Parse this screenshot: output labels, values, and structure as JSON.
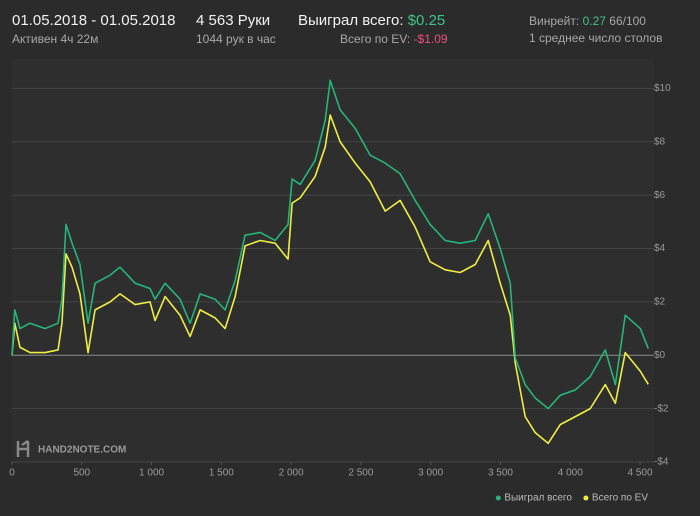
{
  "header": {
    "date_range": "01.05.2018 - 01.05.2018",
    "active": "Активен 4ч 22м",
    "hands": "4 563 Руки",
    "hands_per_hour": "1044 рук в час",
    "won_label": "Выиграл всего:",
    "won_value": "$0.25",
    "ev_label": "Всего по EV:",
    "ev_value": "-$1.09",
    "winrate_label": "Винрейт:",
    "winrate_value": "0.27",
    "winrate_sample": "66/100",
    "tables": "1 среднее число столов"
  },
  "watermark": "HAND2NOTE.COM",
  "chart_data": {
    "type": "line",
    "x": [
      0,
      20,
      57,
      129,
      237,
      330,
      358,
      387,
      430,
      487,
      545,
      595,
      703,
      774,
      882,
      989,
      1025,
      1097,
      1204,
      1276,
      1348,
      1455,
      1527,
      1599,
      1670,
      1778,
      1885,
      1978,
      2007,
      2065,
      2172,
      2244,
      2280,
      2351,
      2459,
      2566,
      2674,
      2781,
      2889,
      2996,
      3104,
      3211,
      3319,
      3412,
      3498,
      3570,
      3606,
      3677,
      3749,
      3842,
      3928,
      4036,
      4143,
      4251,
      4323,
      4394,
      4502,
      4559
    ],
    "series": [
      {
        "name": "Выиграл всего",
        "color": "#25b57a",
        "values": [
          0,
          1.7,
          1.0,
          1.2,
          1.0,
          1.2,
          2.1,
          4.9,
          4.2,
          3.4,
          1.2,
          2.7,
          3.0,
          3.3,
          2.7,
          2.5,
          2.1,
          2.7,
          2.1,
          1.2,
          2.3,
          2.1,
          1.7,
          2.8,
          4.5,
          4.6,
          4.3,
          4.9,
          6.6,
          6.4,
          7.3,
          8.8,
          10.3,
          9.2,
          8.5,
          7.5,
          7.2,
          6.8,
          5.8,
          4.9,
          4.3,
          4.2,
          4.3,
          5.3,
          4.0,
          2.7,
          -0.1,
          -1.1,
          -1.6,
          -2.0,
          -1.5,
          -1.3,
          -0.8,
          0.2,
          -1.1,
          1.5,
          1.0,
          0.25
        ]
      },
      {
        "name": "Всего по EV",
        "color": "#eeee44",
        "values": [
          0,
          1.2,
          0.3,
          0.1,
          0.1,
          0.2,
          1.2,
          3.8,
          3.3,
          2.3,
          0.1,
          1.7,
          2.0,
          2.3,
          1.9,
          2.0,
          1.3,
          2.2,
          1.5,
          0.7,
          1.7,
          1.4,
          1.0,
          2.2,
          4.1,
          4.3,
          4.2,
          3.6,
          5.7,
          5.9,
          6.7,
          7.8,
          9.0,
          8.0,
          7.2,
          6.5,
          5.4,
          5.8,
          4.8,
          3.5,
          3.2,
          3.1,
          3.4,
          4.3,
          2.7,
          1.5,
          -0.3,
          -2.3,
          -2.9,
          -3.3,
          -2.6,
          -2.3,
          -2.0,
          -1.1,
          -1.8,
          0.1,
          -0.6,
          -1.09
        ]
      }
    ],
    "xlim": [
      0,
      4600
    ],
    "ylim": [
      -4,
      11.1
    ],
    "xticks": [
      0,
      500,
      {
        "value": 1000,
        "label": "1 000"
      },
      {
        "value": 1500,
        "label": "1 500"
      },
      {
        "value": 2000,
        "label": "2 000"
      },
      {
        "value": 2500,
        "label": "2 500"
      },
      {
        "value": 3000,
        "label": "3 000"
      },
      {
        "value": 3500,
        "label": "3 500"
      },
      {
        "value": 4000,
        "label": "4 000"
      },
      {
        "value": 4500,
        "label": "4 500"
      }
    ],
    "yticks": [
      {
        "value": -4,
        "label": "-$4"
      },
      {
        "value": -2,
        "label": "-$2"
      },
      {
        "value": 0,
        "label": "$0"
      },
      {
        "value": 2,
        "label": "$2"
      },
      {
        "value": 4,
        "label": "$4"
      },
      {
        "value": 6,
        "label": "$6"
      },
      {
        "value": 8,
        "label": "$8"
      },
      {
        "value": 10,
        "label": "$10"
      }
    ],
    "grid": true,
    "legend": "bottom-right"
  }
}
